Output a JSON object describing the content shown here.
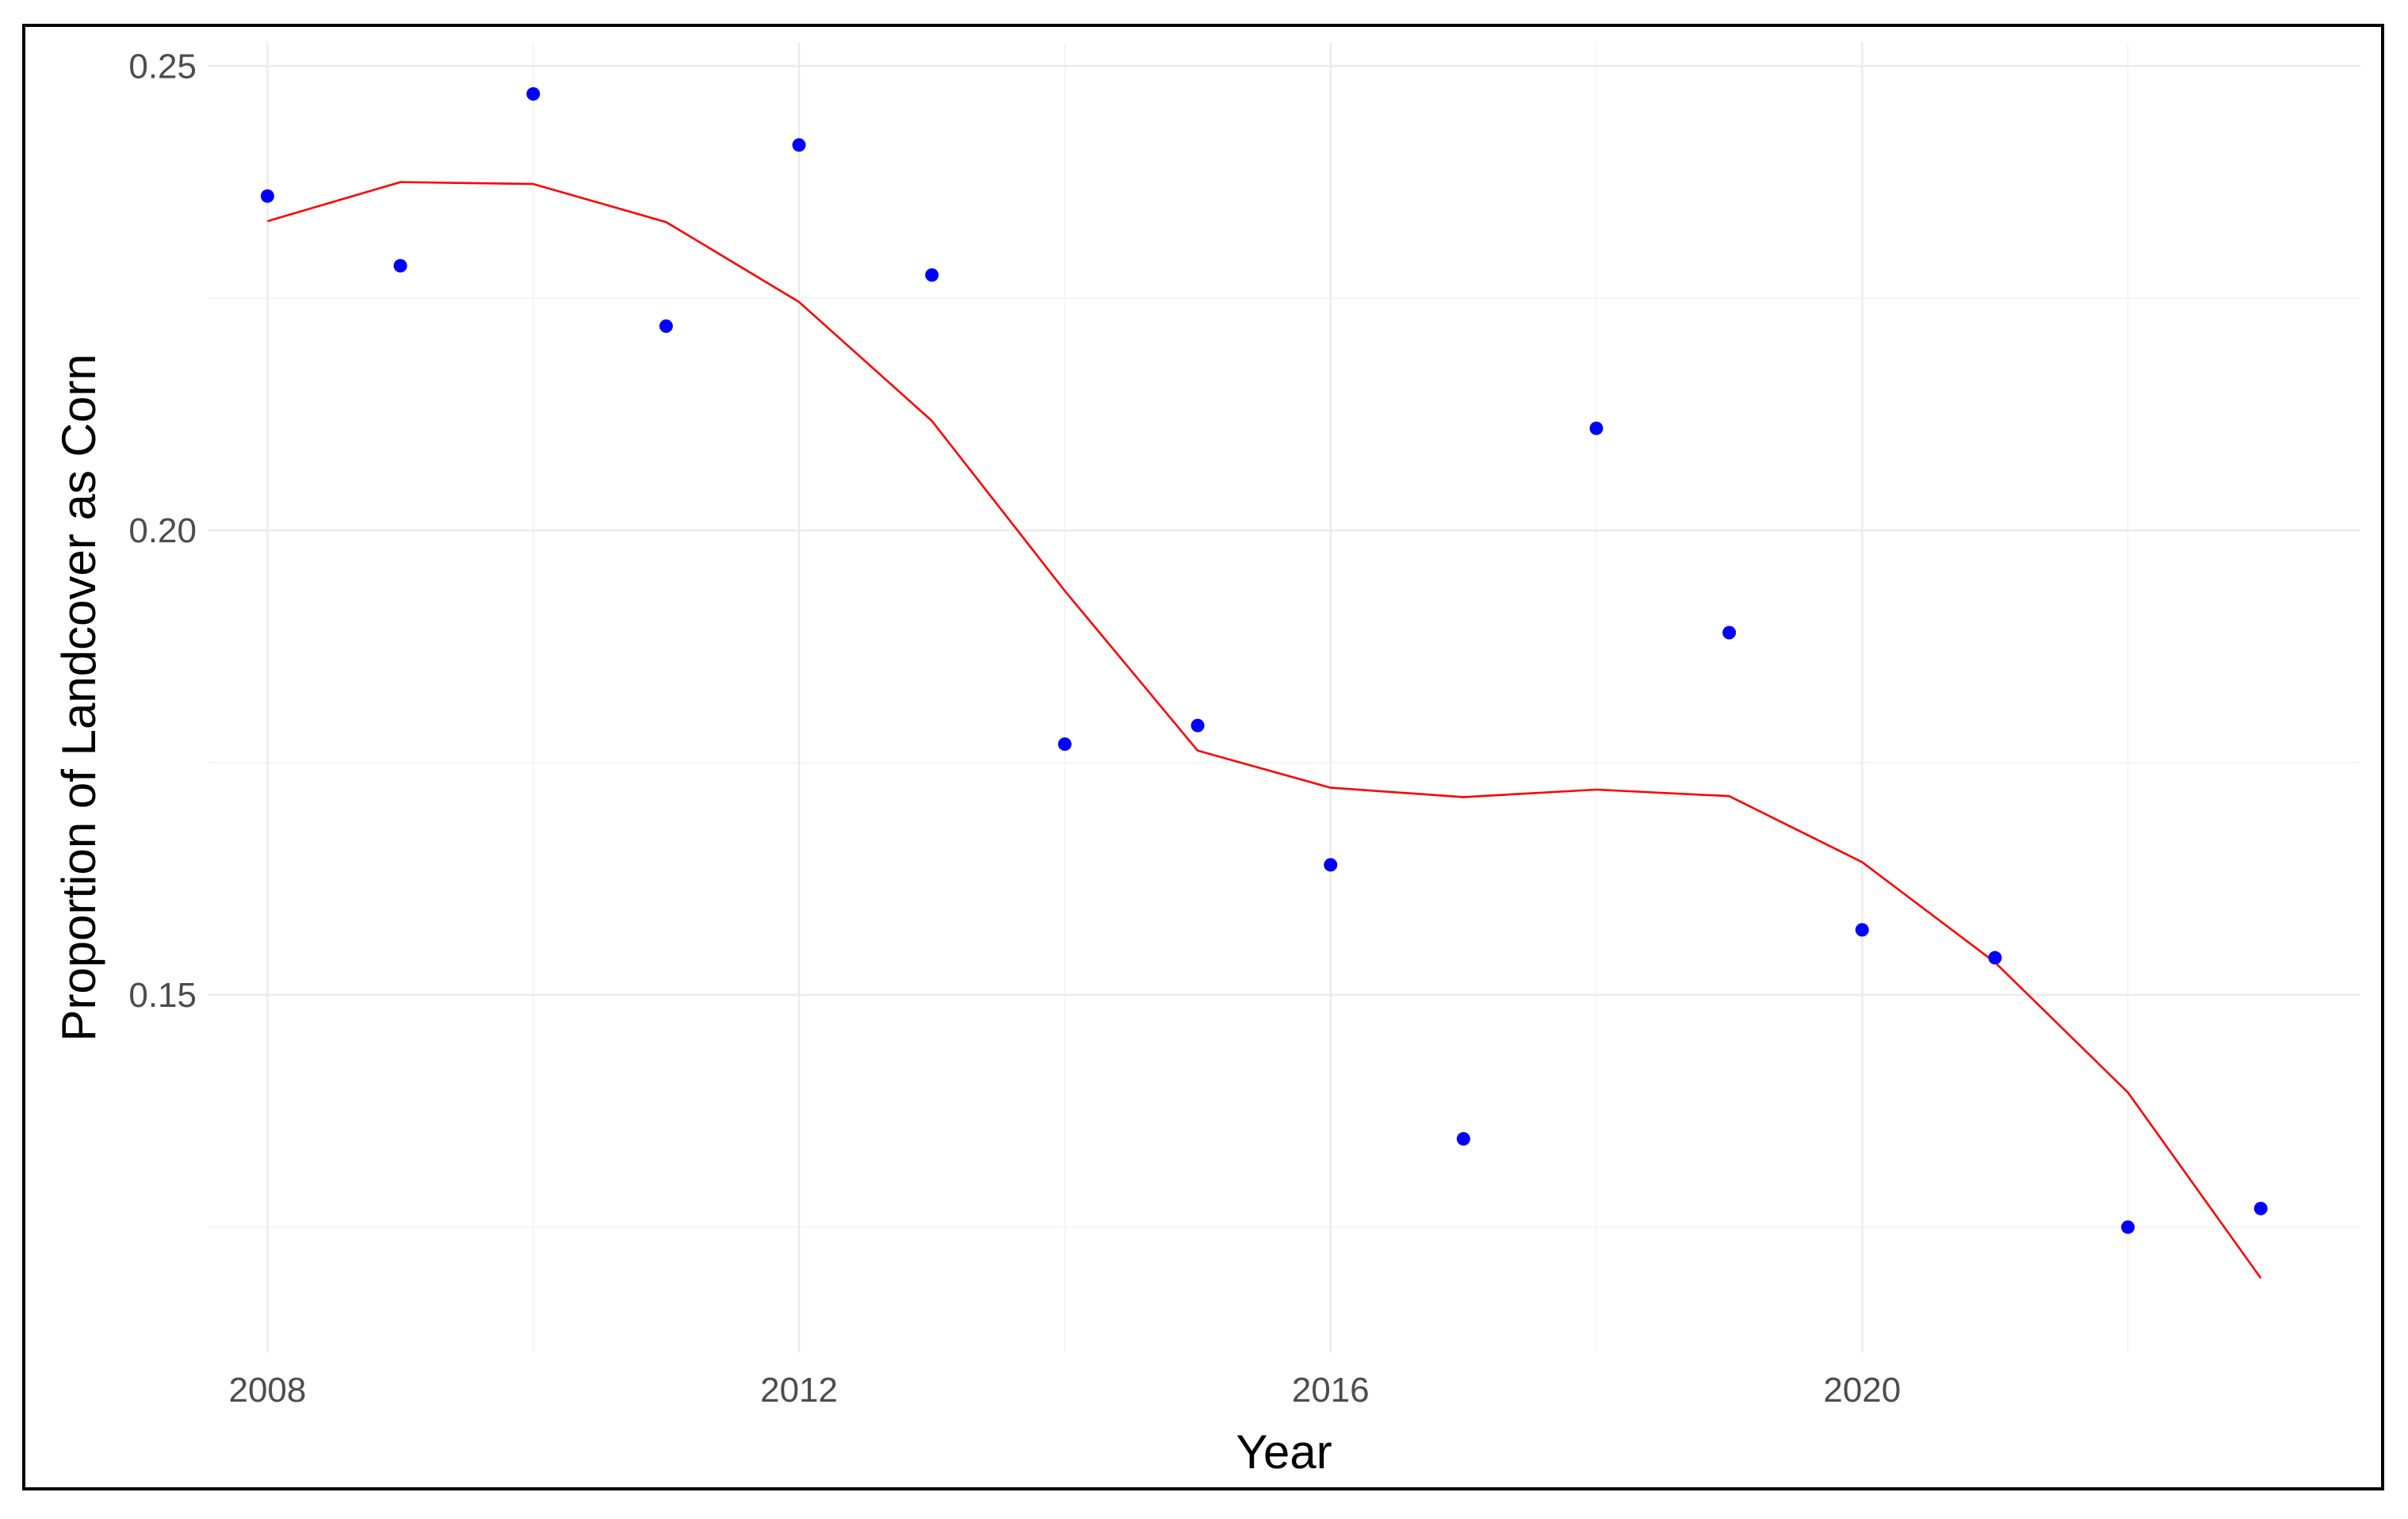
{
  "chart_data": {
    "type": "scatter",
    "title": "",
    "xlabel": "Year",
    "ylabel": "Proportion of Landcover as Corn",
    "xlim": [
      2007.55,
      2023.75
    ],
    "ylim": [
      0.1115,
      0.2525
    ],
    "x_ticks": [
      2008,
      2012,
      2016,
      2020
    ],
    "x_tick_labels": [
      "2008",
      "2012",
      "2016",
      "2020"
    ],
    "y_ticks": [
      0.15,
      0.2,
      0.25
    ],
    "y_tick_labels": [
      "0.15",
      "0.20",
      "0.25"
    ],
    "y_minor_ticks": [
      0.125,
      0.175,
      0.225
    ],
    "x_minor_ticks": [
      2010,
      2014,
      2018,
      2022
    ],
    "grid": true,
    "legend": "none",
    "series": [
      {
        "kind": "points",
        "color": "#0000ff",
        "x": [
          2008,
          2009,
          2010,
          2011,
          2012,
          2013,
          2014,
          2015,
          2016,
          2017,
          2018,
          2019,
          2020,
          2021,
          2022,
          2023
        ],
        "y": [
          0.236,
          0.2285,
          0.247,
          0.222,
          0.2415,
          0.2275,
          0.177,
          0.179,
          0.164,
          0.1345,
          0.211,
          0.189,
          0.157,
          0.154,
          0.125,
          0.127
        ]
      },
      {
        "kind": "line",
        "color": "#ff0000",
        "x": [
          2008,
          2009,
          2010,
          2011,
          2012,
          2013,
          2014,
          2015,
          2016,
          2017,
          2018,
          2019,
          2020,
          2021,
          2022,
          2023
        ],
        "y": [
          0.2333,
          0.2375,
          0.2373,
          0.2332,
          0.2246,
          0.2118,
          0.1935,
          0.1763,
          0.1723,
          0.1713,
          0.1721,
          0.1714,
          0.1643,
          0.1535,
          0.1395,
          0.1195
        ]
      }
    ]
  }
}
